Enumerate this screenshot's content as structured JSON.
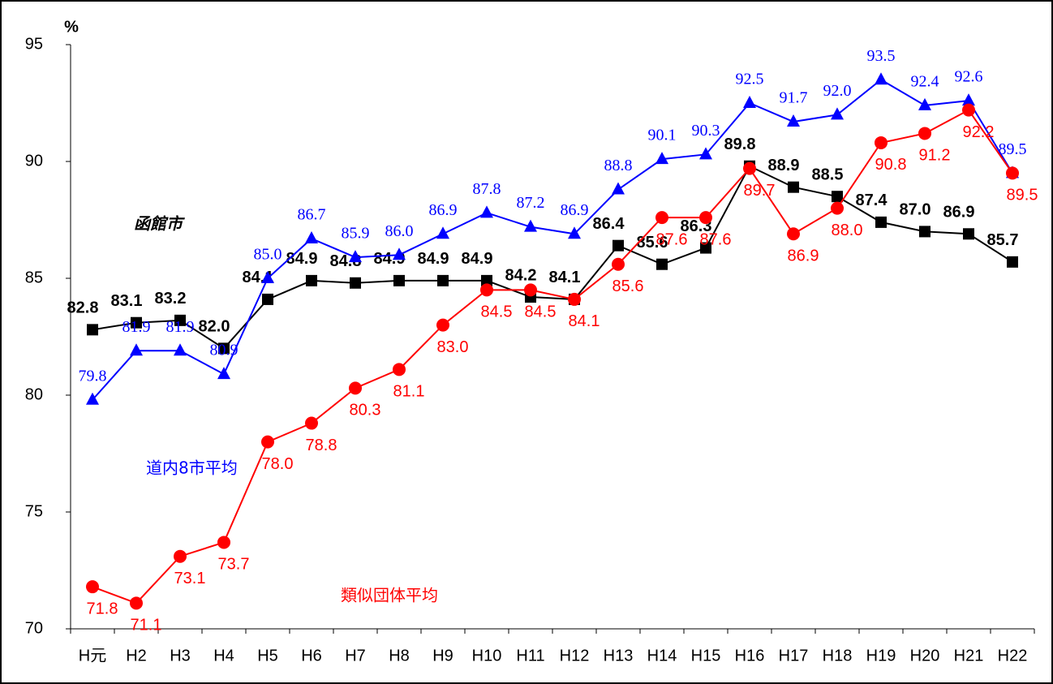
{
  "chart_data": {
    "type": "line",
    "y_unit": "%",
    "categories": [
      "H元",
      "H2",
      "H3",
      "H4",
      "H5",
      "H6",
      "H7",
      "H8",
      "H9",
      "H10",
      "H11",
      "H12",
      "H13",
      "H14",
      "H15",
      "H16",
      "H17",
      "H18",
      "H19",
      "H20",
      "H21",
      "H22"
    ],
    "ylim": [
      70,
      95
    ],
    "yticks": [
      70,
      75,
      80,
      85,
      90,
      95
    ],
    "series": [
      {
        "name": "函館市",
        "color": "#000000",
        "marker": "square",
        "values": [
          82.8,
          83.1,
          83.2,
          82.0,
          84.1,
          84.9,
          84.8,
          84.9,
          84.9,
          84.9,
          84.2,
          84.1,
          86.4,
          85.6,
          86.3,
          89.8,
          88.9,
          88.5,
          87.4,
          87.0,
          86.9,
          85.7
        ],
        "value_labels": [
          "82.8",
          "83.1",
          "83.2",
          "82.0",
          "84.1",
          "84.9",
          "84.8",
          "84.9",
          "84.9",
          "84.9",
          "84.2",
          "84.1",
          "86.4",
          "85.6",
          "86.3",
          "89.8",
          "88.9",
          "88.5",
          "87.4",
          "87.0",
          "86.9",
          "85.7"
        ]
      },
      {
        "name": "道内8市平均",
        "color": "#0000ff",
        "marker": "triangle",
        "values": [
          79.8,
          81.9,
          81.9,
          80.9,
          85.0,
          86.7,
          85.9,
          86.0,
          86.9,
          87.8,
          87.2,
          86.9,
          88.8,
          90.1,
          90.3,
          92.5,
          91.7,
          92.0,
          93.5,
          92.4,
          92.6,
          89.5
        ],
        "value_labels": [
          "79.8",
          "81.9",
          "81.9",
          "80.9",
          "85.0",
          "86.7",
          "85.9",
          "86.0",
          "86.9",
          "87.8",
          "87.2",
          "86.9",
          "88.8",
          "90.1",
          "90.3",
          "92.5",
          "91.7",
          "92.0",
          "93.5",
          "92.4",
          "92.6",
          "89.5"
        ]
      },
      {
        "name": "類似団体平均",
        "color": "#ff0000",
        "marker": "circle",
        "values": [
          71.8,
          71.1,
          73.1,
          73.7,
          78.0,
          78.8,
          80.3,
          81.1,
          83.0,
          84.5,
          84.5,
          84.1,
          85.6,
          87.6,
          87.6,
          89.7,
          86.9,
          88.0,
          90.8,
          91.2,
          92.2,
          89.5
        ],
        "value_labels": [
          "71.8",
          "71.1",
          "73.1",
          "73.7",
          "78.0",
          "78.8",
          "80.3",
          "81.1",
          "83.0",
          "84.5",
          "84.5",
          "84.1",
          "85.6",
          "87.6",
          "87.6",
          "89.7",
          "86.9",
          "88.0",
          "90.8",
          "91.2",
          "92.2",
          "89.5"
        ]
      }
    ]
  }
}
